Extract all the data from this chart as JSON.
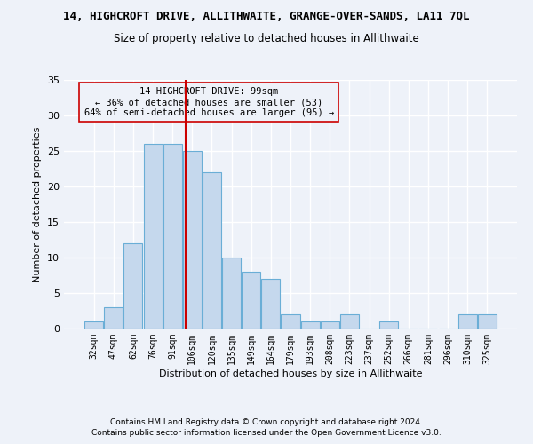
{
  "title": "14, HIGHCROFT DRIVE, ALLITHWAITE, GRANGE-OVER-SANDS, LA11 7QL",
  "subtitle": "Size of property relative to detached houses in Allithwaite",
  "xlabel": "Distribution of detached houses by size in Allithwaite",
  "ylabel": "Number of detached properties",
  "bin_labels": [
    "32sqm",
    "47sqm",
    "62sqm",
    "76sqm",
    "91sqm",
    "106sqm",
    "120sqm",
    "135sqm",
    "149sqm",
    "164sqm",
    "179sqm",
    "193sqm",
    "208sqm",
    "223sqm",
    "237sqm",
    "252sqm",
    "266sqm",
    "281sqm",
    "296sqm",
    "310sqm",
    "325sqm"
  ],
  "bar_heights": [
    1,
    3,
    12,
    26,
    26,
    25,
    22,
    10,
    8,
    7,
    2,
    1,
    1,
    2,
    0,
    1,
    0,
    0,
    0,
    2,
    2
  ],
  "bar_color": "#c5d8ed",
  "bar_edgecolor": "#6aaed6",
  "vline_x": 4.67,
  "vline_color": "#cc0000",
  "annotation_text": "14 HIGHCROFT DRIVE: 99sqm\n← 36% of detached houses are smaller (53)\n64% of semi-detached houses are larger (95) →",
  "annotation_box_edgecolor": "#cc0000",
  "footer_line1": "Contains HM Land Registry data © Crown copyright and database right 2024.",
  "footer_line2": "Contains public sector information licensed under the Open Government Licence v3.0.",
  "ylim": [
    0,
    35
  ],
  "background_color": "#eef2f9",
  "grid_color": "#ffffff"
}
